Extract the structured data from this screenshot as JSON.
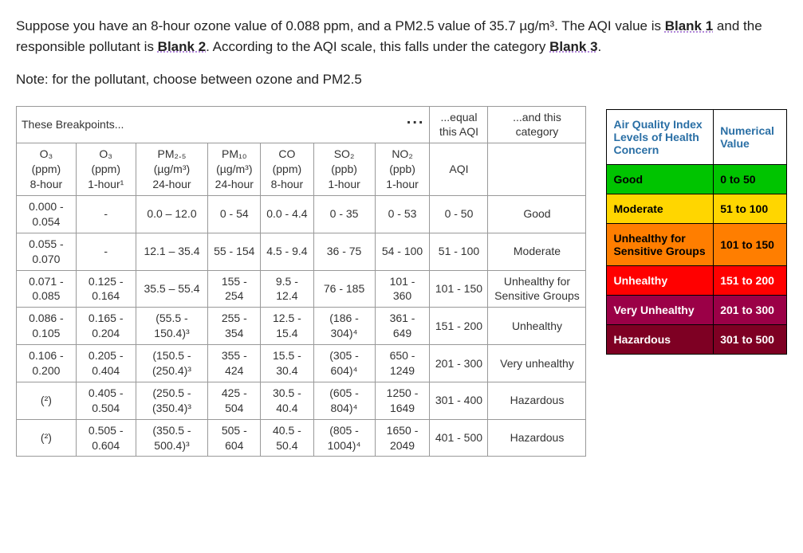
{
  "question": {
    "line1a": "Suppose you have an 8-hour ozone value of 0.088 ppm, and a PM2.5 value of 35.7 µg/m³. The AQI value is ",
    "blank1": "Blank 1",
    "line1b": " and the responsible pollutant is ",
    "blank2": "Blank 2",
    "line1c": ". According to the AQI scale, this falls under the category ",
    "blank3": "Blank 3",
    "line1d": ".",
    "note": "Note: for the pollutant, choose between ozone and PM2.5"
  },
  "bp_table": {
    "header_row1": {
      "breakpoints": "These Breakpoints...",
      "equal": "...equal this AQI",
      "and": "...and this category",
      "dots": "..."
    },
    "cols": [
      {
        "top": "O₃",
        "mid": "(ppm)",
        "bot": "8-hour"
      },
      {
        "top": "O₃",
        "mid": "(ppm)",
        "bot": "1-hour¹"
      },
      {
        "top": "PM₂.₅",
        "mid": "(µg/m³)",
        "bot": "24-hour"
      },
      {
        "top": "PM₁₀",
        "mid": "(µg/m³)",
        "bot": "24-hour"
      },
      {
        "top": "CO",
        "mid": "(ppm)",
        "bot": "8-hour"
      },
      {
        "top": "SO₂",
        "mid": "(ppb)",
        "bot": "1-hour"
      },
      {
        "top": "NO₂",
        "mid": "(ppb)",
        "bot": "1-hour"
      },
      {
        "top": "AQI",
        "mid": "",
        "bot": ""
      },
      {
        "top": "",
        "mid": "",
        "bot": ""
      }
    ],
    "rows": [
      {
        "c": [
          "0.000 - 0.054",
          "-",
          "0.0 – 12.0",
          "0 - 54",
          "0.0 - 4.4",
          "0 - 35",
          "0 - 53",
          "0 - 50",
          "Good"
        ]
      },
      {
        "c": [
          "0.055 - 0.070",
          "-",
          "12.1 – 35.4",
          "55 - 154",
          "4.5 - 9.4",
          "36 - 75",
          "54 - 100",
          "51 - 100",
          "Moderate"
        ]
      },
      {
        "c": [
          "0.071 - 0.085",
          "0.125 - 0.164",
          "35.5 – 55.4",
          "155 - 254",
          "9.5 - 12.4",
          "76 - 185",
          "101 - 360",
          "101 - 150",
          "Unhealthy for Sensitive Groups"
        ]
      },
      {
        "c": [
          "0.086 - 0.105",
          "0.165 - 0.204",
          "(55.5 - 150.4)³",
          "255 - 354",
          "12.5 - 15.4",
          "(186 - 304)⁴",
          "361 - 649",
          "151 - 200",
          "Unhealthy"
        ]
      },
      {
        "c": [
          "0.106 - 0.200",
          "0.205 - 0.404",
          "(150.5 - (250.4)³",
          "355 - 424",
          "15.5 - 30.4",
          "(305 - 604)⁴",
          "650 - 1249",
          "201 - 300",
          "Very unhealthy"
        ]
      },
      {
        "c": [
          "(²)",
          "0.405 - 0.504",
          "(250.5 - (350.4)³",
          "425 - 504",
          "30.5 - 40.4",
          "(605 - 804)⁴",
          "1250 - 1649",
          "301 - 400",
          "Hazardous"
        ]
      },
      {
        "c": [
          "(²)",
          "0.505 - 0.604",
          "(350.5 - 500.4)³",
          "505 - 604",
          "40.5 - 50.4",
          "(805 - 1004)⁴",
          "1650 - 2049",
          "401 - 500",
          "Hazardous"
        ]
      }
    ]
  },
  "scale_table": {
    "header": {
      "c1": "Air Quality Index Levels of Health Concern",
      "c2": "Numerical Value"
    },
    "rows": [
      {
        "label": "Good",
        "range": "0 to 50",
        "bg": "#00c400",
        "fg": "#000000"
      },
      {
        "label": "Moderate",
        "range": "51 to 100",
        "bg": "#ffd600",
        "fg": "#000000"
      },
      {
        "label": "Unhealthy for Sensitive Groups",
        "range": "101 to 150",
        "bg": "#ff7e00",
        "fg": "#000000"
      },
      {
        "label": "Unhealthy",
        "range": "151 to 200",
        "bg": "#ff0000",
        "fg": "#ffffff"
      },
      {
        "label": "Very Unhealthy",
        "range": "201 to 300",
        "bg": "#9b0047",
        "fg": "#ffffff"
      },
      {
        "label": "Hazardous",
        "range": "301 to 500",
        "bg": "#7e0023",
        "fg": "#ffffff"
      }
    ]
  }
}
